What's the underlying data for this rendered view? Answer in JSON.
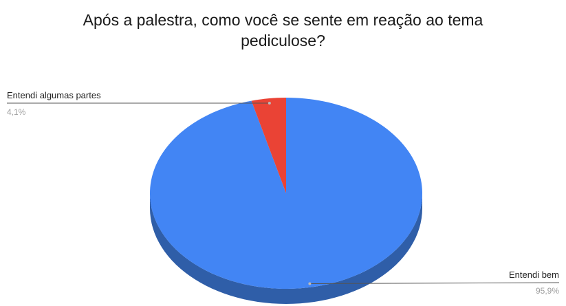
{
  "chart_data": {
    "type": "pie",
    "title_lines": [
      "Após a palestra, como você se sente em reação ao tema",
      "pediculose?"
    ],
    "categories": [
      "Entendi bem",
      "Entendi algumas partes"
    ],
    "values": [
      95.9,
      4.1
    ],
    "value_labels": [
      "95,9%",
      "4,1%"
    ],
    "colors": [
      "#4285f4",
      "#ea4335"
    ],
    "side_colors": [
      "#2f5ea8",
      "#a33025"
    ],
    "three_d": true,
    "legend": "none"
  }
}
